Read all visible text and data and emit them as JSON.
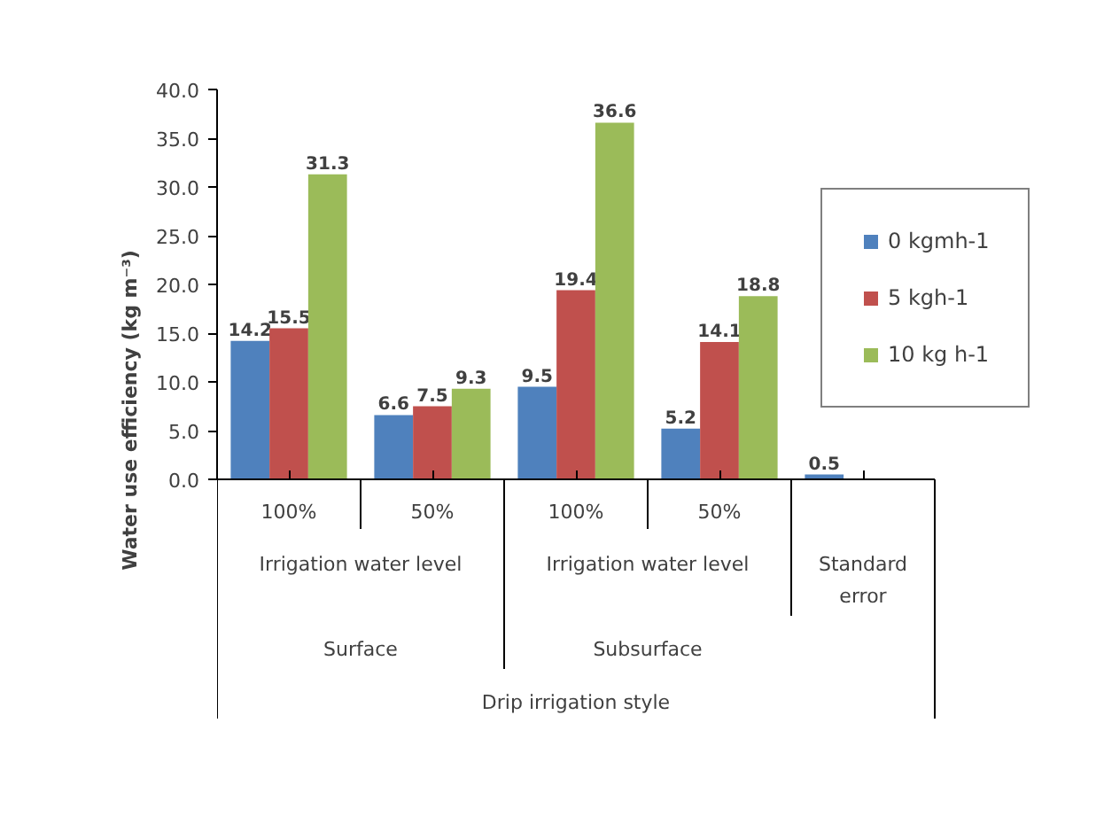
{
  "chart_data": {
    "type": "bar",
    "ylabel": "Water use efficiency (kg m⁻³)",
    "categories": [
      "100%",
      "50%",
      "100%",
      "50%",
      null
    ],
    "series": [
      {
        "name": "0 kgmh-1",
        "color": "#4f81bd",
        "values": [
          14.2,
          6.6,
          9.5,
          5.2,
          0.5
        ]
      },
      {
        "name": "5 kgh-1",
        "color": "#c0504d",
        "values": [
          15.5,
          7.5,
          19.4,
          14.1,
          null
        ]
      },
      {
        "name": "10 kg h-1",
        "color": "#9bbb59",
        "values": [
          31.3,
          9.3,
          36.6,
          18.8,
          null
        ]
      }
    ],
    "ylim": [
      0,
      40
    ],
    "yticks": [
      {
        "value": 0,
        "label": "0.0"
      },
      {
        "value": 5,
        "label": "5.0"
      },
      {
        "value": 10,
        "label": "10.0"
      },
      {
        "value": 15,
        "label": "15.0"
      },
      {
        "value": 20,
        "label": "20.0"
      },
      {
        "value": 25,
        "label": "25.0"
      },
      {
        "value": 30,
        "label": "30.0"
      },
      {
        "value": 35,
        "label": "35.0"
      },
      {
        "value": 40,
        "label": "40.0"
      }
    ],
    "annotations": [
      "Irrigation water level",
      "Irrigation water level",
      "Standard error",
      "Surface",
      "Subsurface",
      "Drip irrigation style"
    ],
    "data_labels": true,
    "legend": "right",
    "grid": false
  }
}
